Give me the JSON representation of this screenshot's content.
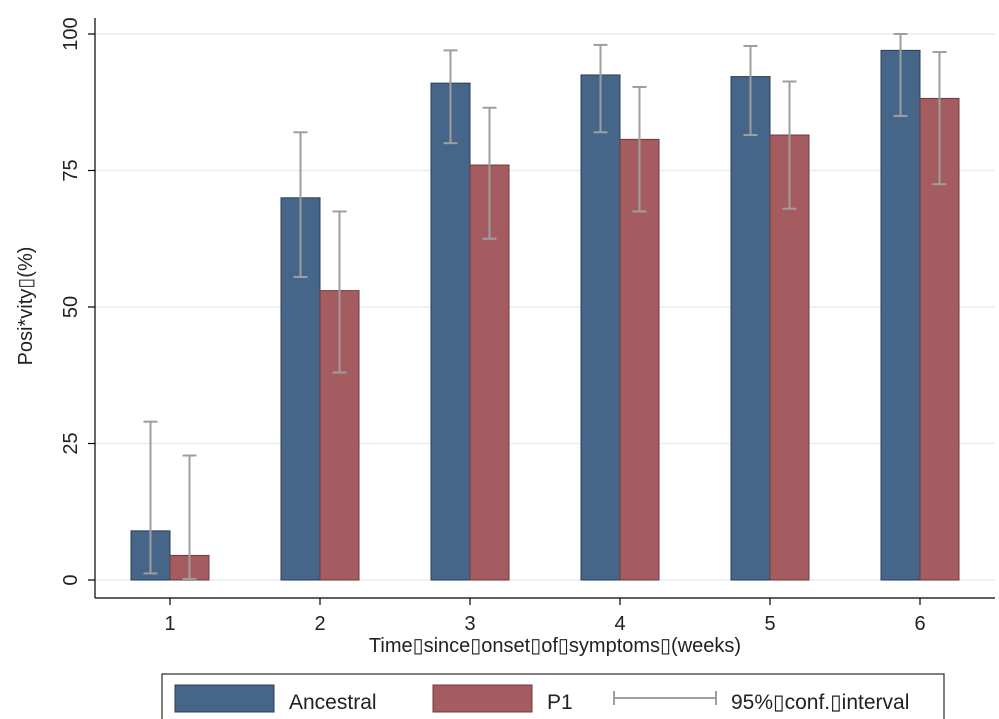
{
  "chart_data": {
    "type": "bar",
    "title": "",
    "xlabel": "Time▯since▯onset▯of▯symptoms▯(weeks)",
    "ylabel": "Posi*vity▯(%)",
    "categories": [
      "1",
      "2",
      "3",
      "4",
      "5",
      "6"
    ],
    "ylim": [
      0,
      100
    ],
    "yticks": [
      "0",
      "25",
      "50",
      "75",
      "100"
    ],
    "grid": true,
    "legend_position": "bottom",
    "series": [
      {
        "name": "Ancestral",
        "color": "#456689",
        "values": [
          9,
          70,
          91,
          92.5,
          92.2,
          97
        ],
        "ci_low": [
          1.2,
          55.5,
          80,
          82,
          81.5,
          85
        ],
        "ci_high": [
          29,
          82,
          97,
          98,
          97.8,
          100
        ]
      },
      {
        "name": "P1",
        "color": "#a55c60",
        "values": [
          4.5,
          53,
          76,
          80.7,
          81.5,
          88.2
        ],
        "ci_low": [
          0.2,
          38,
          62.5,
          67.5,
          68,
          72.5
        ],
        "ci_high": [
          22.8,
          67.5,
          86.5,
          90.3,
          91.3,
          96.7
        ]
      }
    ],
    "ci_legend_label": "95%▯conf.▯interval",
    "ci_color": "#9e9e9e"
  }
}
